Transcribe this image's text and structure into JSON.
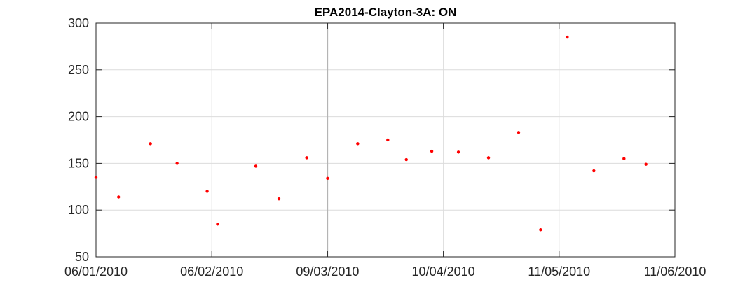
{
  "chart_data": {
    "type": "scatter",
    "title": "EPA2014-Clayton-3A: ON",
    "xlabel": "",
    "ylabel": "",
    "x_ticks": [
      "06/01/2010",
      "06/02/2010",
      "09/03/2010",
      "10/04/2010",
      "11/05/2010",
      "11/06/2010"
    ],
    "y_ticks": [
      50,
      100,
      150,
      200,
      250,
      300
    ],
    "ylim": [
      50,
      300
    ],
    "grid": true,
    "marker_color": "#ff0000",
    "points": [
      {
        "x": 0.0,
        "y": 135
      },
      {
        "x": 0.195,
        "y": 114
      },
      {
        "x": 0.47,
        "y": 171
      },
      {
        "x": 0.7,
        "y": 150
      },
      {
        "x": 0.96,
        "y": 120
      },
      {
        "x": 1.05,
        "y": 85
      },
      {
        "x": 1.38,
        "y": 147
      },
      {
        "x": 1.58,
        "y": 112
      },
      {
        "x": 1.82,
        "y": 156
      },
      {
        "x": 2.0,
        "y": 134
      },
      {
        "x": 2.26,
        "y": 171
      },
      {
        "x": 2.52,
        "y": 175
      },
      {
        "x": 2.68,
        "y": 154
      },
      {
        "x": 2.9,
        "y": 163
      },
      {
        "x": 3.13,
        "y": 162
      },
      {
        "x": 3.39,
        "y": 156
      },
      {
        "x": 3.65,
        "y": 183
      },
      {
        "x": 3.84,
        "y": 79
      },
      {
        "x": 4.07,
        "y": 285
      },
      {
        "x": 4.3,
        "y": 142
      },
      {
        "x": 4.56,
        "y": 155
      },
      {
        "x": 4.75,
        "y": 149
      }
    ]
  }
}
